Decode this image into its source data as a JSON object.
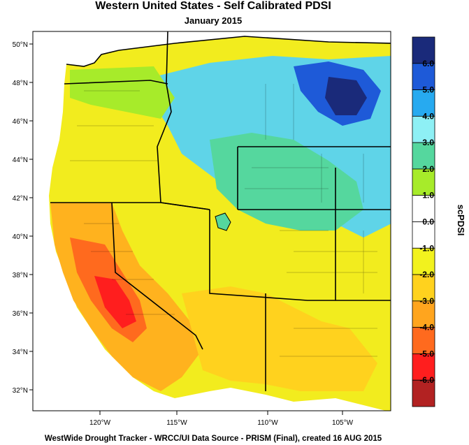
{
  "title": "Western United States - Self Calibrated PDSI",
  "subtitle": "January 2015",
  "footer": "WestWide Drought Tracker - WRCC/UI  Data Source - PRISM (Final), created 16 AUG 2015",
  "map": {
    "lat_ticks": [
      "50°N",
      "48°N",
      "46°N",
      "44°N",
      "42°N",
      "40°N",
      "38°N",
      "36°N",
      "34°N",
      "32°N"
    ],
    "lon_ticks": [
      "120°W",
      "115°W",
      "110°W",
      "105°W"
    ]
  },
  "colorbar": {
    "title": "scPDSI",
    "labels": [
      "6.0",
      "5.0",
      "4.0",
      "3.0",
      "2.0",
      "1.0",
      "0.0",
      "-1.0",
      "-2.0",
      "-3.0",
      "-4.0",
      "-5.0",
      "-6.0"
    ],
    "colors": [
      "#1a2a7a",
      "#1e5ad8",
      "#27aaf0",
      "#8ef0f5",
      "#55d79e",
      "#a7eb2a",
      "#ffffff",
      "#ffffff",
      "#f2f21e",
      "#ffd21e",
      "#ffa51e",
      "#ff6a1e",
      "#ff1e1e",
      "#b22222"
    ]
  }
}
